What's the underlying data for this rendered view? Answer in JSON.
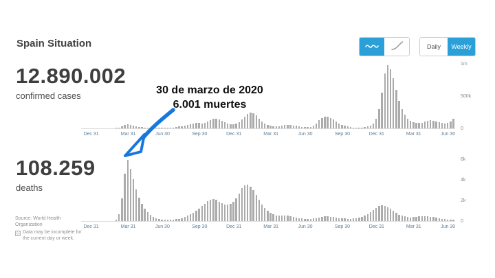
{
  "header": {
    "title": "Spain Situation"
  },
  "stats": {
    "cases_value": "12.890.002",
    "cases_label": "confirmed cases",
    "deaths_value": "108.259",
    "deaths_label": "deaths"
  },
  "controls": {
    "chart_type_selected": "daily-change",
    "daily_label": "Daily",
    "weekly_label": "Weekly",
    "frequency_selected": "Weekly"
  },
  "annotation": {
    "line1": "30 de marzo de 2020",
    "line2": "6.001 muertes"
  },
  "footer": {
    "source": "Source: World Health Organization",
    "disclaimer": "Data may be incomplete for the current day or week."
  },
  "colors": {
    "accent_blue": "#2b9fd8",
    "bar_gray": "#ababab",
    "arrow_blue": "#1678df",
    "xtick_color": "#5f7d95"
  },
  "chart_data": [
    {
      "type": "bar",
      "title": "confirmed cases, weekly new",
      "legend_position": "none",
      "grid": false,
      "ylim": [
        0,
        1000000
      ],
      "y_ticks": [
        {
          "label": "1m",
          "value": 1000000
        },
        {
          "label": "500k",
          "value": 500000
        },
        {
          "label": "0",
          "value": 0
        }
      ],
      "categories": [
        "Dec 31",
        "Mar 31",
        "Jun 30",
        "Sep 30",
        "Dec 31",
        "Mar 31",
        "Jun 30",
        "Sep 30",
        "Dec 31",
        "Mar 31",
        "Jun 30"
      ],
      "tick_weeks": [
        3,
        16,
        28,
        41,
        53,
        66,
        78,
        91,
        103,
        116,
        128
      ],
      "values": [
        0,
        0,
        0,
        0,
        0,
        0,
        0,
        0,
        0,
        0,
        0,
        0,
        3000,
        12000,
        30000,
        52000,
        64000,
        58000,
        45000,
        33000,
        24000,
        17000,
        12000,
        9000,
        7000,
        5000,
        4000,
        4000,
        4000,
        5000,
        7000,
        10000,
        15000,
        21000,
        28000,
        36000,
        45000,
        54000,
        63000,
        72000,
        80000,
        82000,
        78000,
        85000,
        105000,
        128000,
        148000,
        150000,
        138000,
        118000,
        95000,
        78000,
        68000,
        65000,
        75000,
        100000,
        135000,
        180000,
        225000,
        248000,
        238000,
        198000,
        150000,
        108000,
        76000,
        54000,
        41000,
        33000,
        30000,
        34000,
        42000,
        52000,
        58000,
        56000,
        48000,
        40000,
        32000,
        26000,
        21000,
        18000,
        22000,
        38000,
        75000,
        125000,
        165000,
        183000,
        178000,
        160000,
        135000,
        105000,
        78000,
        56000,
        40000,
        29000,
        21000,
        15000,
        13000,
        13000,
        15000,
        19000,
        28000,
        42000,
        75000,
        150000,
        300000,
        550000,
        850000,
        975000,
        920000,
        780000,
        600000,
        430000,
        300000,
        210000,
        150000,
        115000,
        95000,
        85000,
        82000,
        90000,
        102000,
        115000,
        125000,
        122000,
        110000,
        96000,
        84000,
        78000,
        85000,
        110000,
        145000
      ]
    },
    {
      "type": "bar",
      "title": "deaths, weekly new",
      "legend_position": "none",
      "grid": false,
      "ylim": [
        0,
        6000
      ],
      "y_ticks": [
        {
          "label": "6k",
          "value": 6000
        },
        {
          "label": "4k",
          "value": 4000
        },
        {
          "label": "2k",
          "value": 2000
        },
        {
          "label": "0",
          "value": 0
        }
      ],
      "categories": [
        "Dec 31",
        "Mar 31",
        "Jun 30",
        "Sep 30",
        "Dec 31",
        "Mar 31",
        "Jun 30",
        "Sep 30",
        "Dec 31",
        "Mar 31",
        "Jun 30"
      ],
      "tick_weeks": [
        3,
        16,
        28,
        41,
        53,
        66,
        78,
        91,
        103,
        116,
        128
      ],
      "values": [
        0,
        0,
        0,
        0,
        0,
        0,
        0,
        0,
        0,
        0,
        0,
        0,
        150,
        700,
        2200,
        4600,
        5950,
        5100,
        4100,
        3100,
        2300,
        1700,
        1200,
        850,
        600,
        420,
        300,
        220,
        160,
        130,
        110,
        110,
        130,
        170,
        220,
        300,
        400,
        520,
        660,
        820,
        1000,
        1200,
        1450,
        1700,
        1950,
        2100,
        2150,
        2050,
        1900,
        1750,
        1620,
        1580,
        1650,
        1850,
        2200,
        2700,
        3200,
        3500,
        3550,
        3350,
        3000,
        2550,
        2050,
        1600,
        1250,
        980,
        780,
        640,
        560,
        520,
        520,
        540,
        530,
        490,
        430,
        360,
        300,
        250,
        220,
        200,
        210,
        240,
        290,
        350,
        410,
        450,
        460,
        430,
        380,
        330,
        290,
        260,
        240,
        220,
        220,
        240,
        270,
        320,
        400,
        520,
        680,
        880,
        1100,
        1300,
        1450,
        1520,
        1480,
        1360,
        1180,
        980,
        790,
        630,
        520,
        440,
        390,
        360,
        370,
        410,
        450,
        480,
        490,
        460,
        420,
        370,
        320,
        270,
        230,
        190,
        160,
        130,
        110
      ]
    }
  ]
}
